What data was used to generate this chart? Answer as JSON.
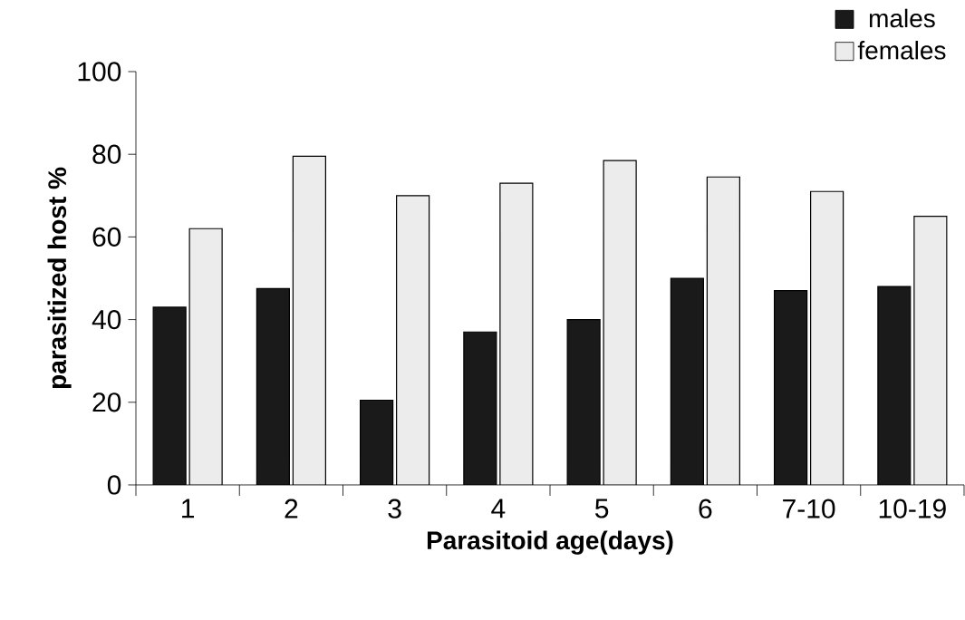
{
  "chart_data": {
    "type": "bar",
    "xlabel": "Parasitoid age(days)",
    "ylabel": "parasitized host %",
    "categories": [
      "1",
      "2",
      "3",
      "4",
      "5",
      "6",
      "7-10",
      "10-19"
    ],
    "series": [
      {
        "name": "males",
        "color": "#1a1a1a",
        "values": [
          43,
          47.5,
          20.5,
          37,
          40,
          50,
          47,
          48
        ]
      },
      {
        "name": "females",
        "color": "#ececec",
        "values": [
          62,
          79.5,
          70,
          73,
          78.5,
          74.5,
          71,
          65
        ]
      }
    ],
    "ylim": [
      0,
      100
    ],
    "yticks": [
      0,
      20,
      40,
      60,
      80,
      100
    ],
    "legend": "top right"
  }
}
